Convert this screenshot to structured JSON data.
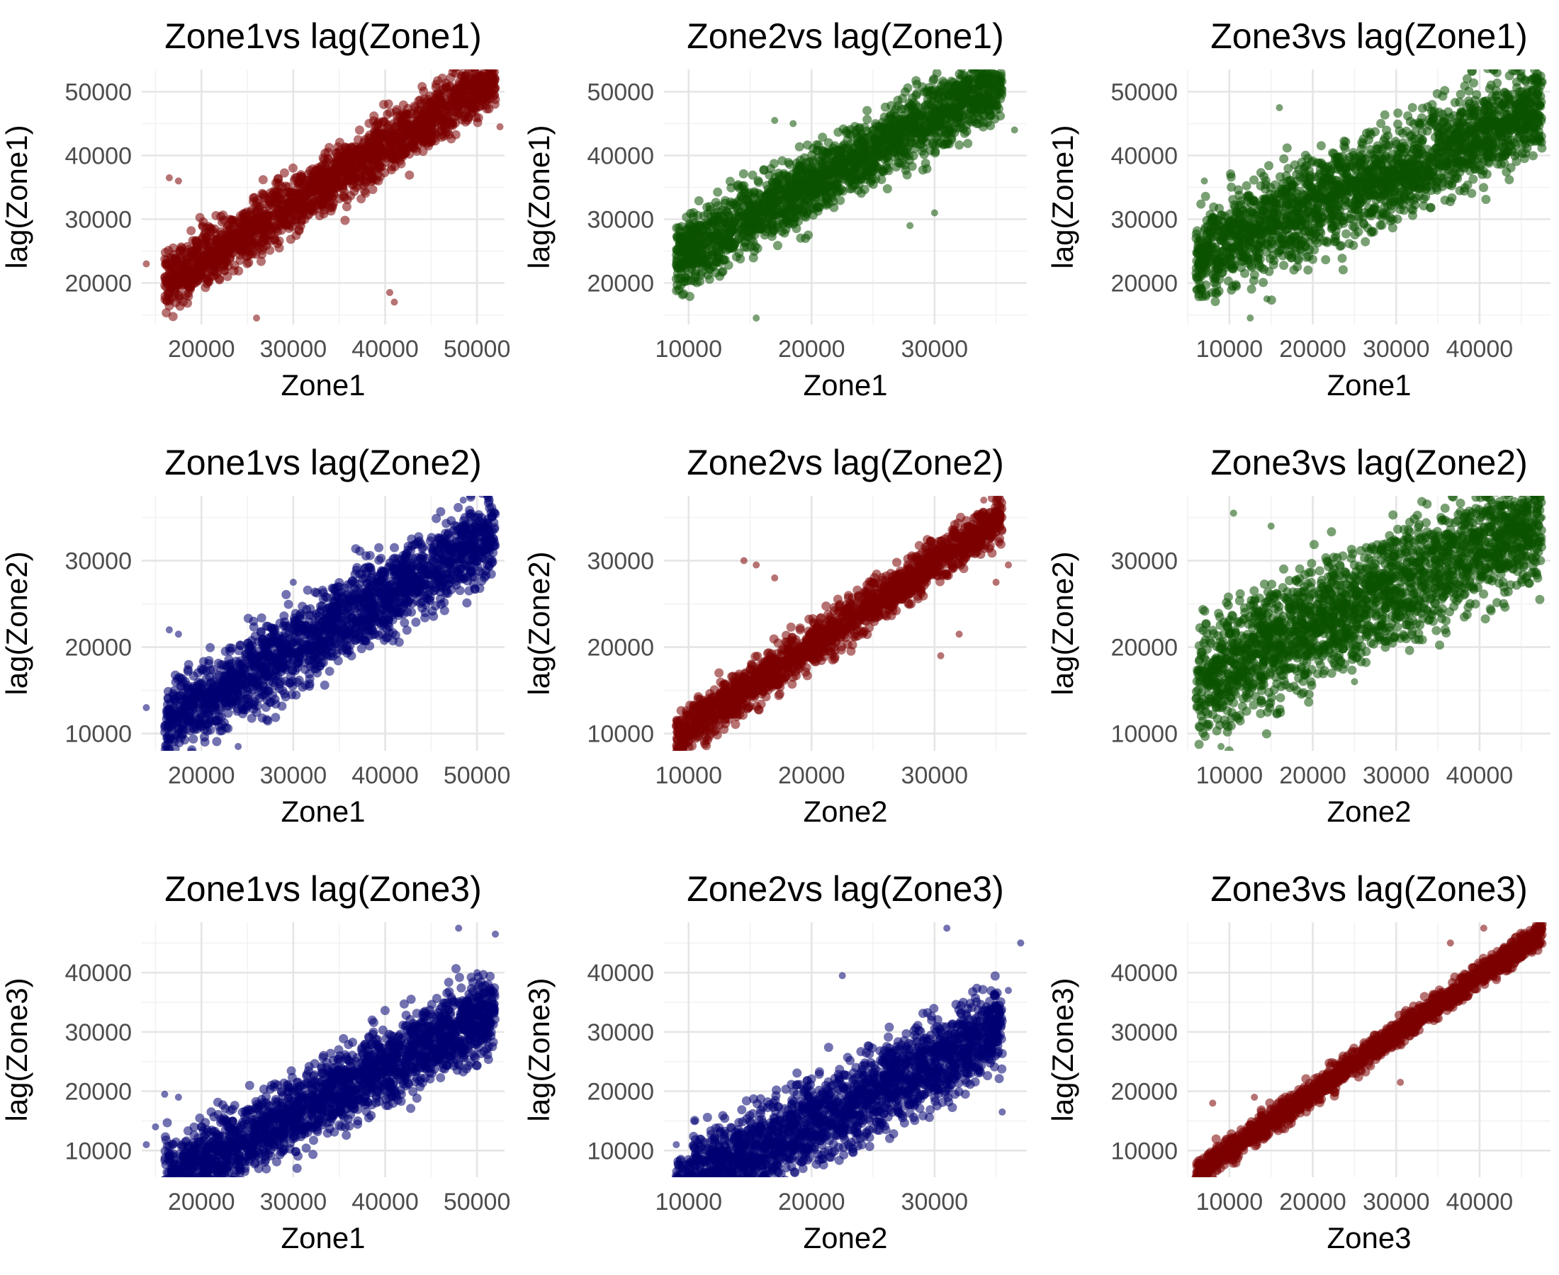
{
  "colors": {
    "red": "#7b0000",
    "green": "#0b5200",
    "blue": "#000073"
  },
  "chart_data": [
    {
      "type": "scatter",
      "title": "Zone1vs lag(Zone1)",
      "xlabel": "Zone1",
      "ylabel": "lag(Zone1)",
      "color": "#7b0000",
      "xlim": [
        13500,
        53000
      ],
      "ylim": [
        13500,
        53500
      ],
      "xticks": [
        20000,
        30000,
        40000,
        50000
      ],
      "yticks": [
        20000,
        30000,
        40000,
        50000
      ],
      "x_ticklabels": [
        "20000",
        "30000",
        "40000",
        "50000"
      ],
      "y_ticklabels": [
        "20000",
        "30000",
        "40000",
        "50000"
      ],
      "shape": {
        "slope": 0.9,
        "intercept": 5500,
        "spread": 3200,
        "xmin": 16000,
        "xmax": 52000,
        "n": 2000
      },
      "points": [
        [
          14000,
          23000
        ],
        [
          16500,
          36500
        ],
        [
          17500,
          36000
        ],
        [
          20000,
          29000
        ],
        [
          40500,
          18500
        ],
        [
          41000,
          17000
        ],
        [
          52500,
          44500
        ],
        [
          51500,
          52000
        ],
        [
          26000,
          14500
        ],
        [
          46000,
          48500
        ]
      ]
    },
    {
      "type": "scatter",
      "title": "Zone2vs lag(Zone1)",
      "xlabel": "Zone1",
      "ylabel": "lag(Zone1)",
      "color": "#0b5200",
      "xlim": [
        8000,
        37500
      ],
      "ylim": [
        13500,
        53500
      ],
      "xticks": [
        10000,
        20000,
        30000
      ],
      "yticks": [
        20000,
        30000,
        40000,
        50000
      ],
      "x_ticklabels": [
        "10000",
        "20000",
        "30000"
      ],
      "y_ticklabels": [
        "20000",
        "30000",
        "40000",
        "50000"
      ],
      "shape": {
        "slope": 1.05,
        "intercept": 14500,
        "spread": 3800,
        "xmin": 9000,
        "xmax": 35500,
        "n": 2000
      },
      "points": [
        [
          9000,
          24000
        ],
        [
          17000,
          45500
        ],
        [
          18500,
          45000
        ],
        [
          36500,
          44000
        ],
        [
          35500,
          50500
        ],
        [
          15500,
          14500
        ],
        [
          28000,
          29000
        ],
        [
          30000,
          31000
        ]
      ]
    },
    {
      "type": "scatter",
      "title": "Zone3vs lag(Zone1)",
      "xlabel": "Zone1",
      "ylabel": "lag(Zone1)",
      "color": "#0b5200",
      "xlim": [
        5000,
        48500
      ],
      "ylim": [
        13500,
        53500
      ],
      "xticks": [
        10000,
        20000,
        30000,
        40000
      ],
      "yticks": [
        20000,
        30000,
        40000,
        50000
      ],
      "x_ticklabels": [
        "10000",
        "20000",
        "30000",
        "40000"
      ],
      "y_ticklabels": [
        "20000",
        "30000",
        "40000",
        "50000"
      ],
      "shape": {
        "slope": 0.55,
        "intercept": 21000,
        "spread": 5200,
        "xmin": 6000,
        "xmax": 47500,
        "n": 2200
      },
      "points": [
        [
          6000,
          19000
        ],
        [
          7000,
          36000
        ],
        [
          12500,
          14500
        ],
        [
          14500,
          17500
        ],
        [
          20000,
          32000
        ],
        [
          47500,
          51500
        ],
        [
          46500,
          48000
        ],
        [
          16000,
          47500
        ]
      ]
    },
    {
      "type": "scatter",
      "title": "Zone1vs lag(Zone2)",
      "xlabel": "Zone1",
      "ylabel": "lag(Zone2)",
      "color": "#000073",
      "xlim": [
        13500,
        53000
      ],
      "ylim": [
        8000,
        37500
      ],
      "xticks": [
        20000,
        30000,
        40000,
        50000
      ],
      "yticks": [
        10000,
        20000,
        30000
      ],
      "x_ticklabels": [
        "20000",
        "30000",
        "40000",
        "50000"
      ],
      "y_ticklabels": [
        "10000",
        "20000",
        "30000"
      ],
      "shape": {
        "slope": 0.62,
        "intercept": 1000,
        "spread": 3200,
        "xmin": 16000,
        "xmax": 52000,
        "n": 2000
      },
      "points": [
        [
          14000,
          13000
        ],
        [
          16500,
          22000
        ],
        [
          17500,
          21500
        ],
        [
          48500,
          37000
        ],
        [
          52000,
          35500
        ],
        [
          24000,
          8500
        ],
        [
          30000,
          27500
        ]
      ]
    },
    {
      "type": "scatter",
      "title": "Zone2vs lag(Zone2)",
      "xlabel": "Zone2",
      "ylabel": "lag(Zone2)",
      "color": "#7b0000",
      "xlim": [
        8000,
        37500
      ],
      "ylim": [
        8000,
        37500
      ],
      "xticks": [
        10000,
        20000,
        30000
      ],
      "yticks": [
        10000,
        20000,
        30000
      ],
      "x_ticklabels": [
        "10000",
        "20000",
        "30000"
      ],
      "y_ticklabels": [
        "10000",
        "20000",
        "30000"
      ],
      "shape": {
        "slope": 0.95,
        "intercept": 1200,
        "spread": 1800,
        "xmin": 9000,
        "xmax": 35500,
        "n": 1800
      },
      "points": [
        [
          9000,
          11500
        ],
        [
          14500,
          30000
        ],
        [
          15500,
          29500
        ],
        [
          17000,
          28000
        ],
        [
          30500,
          19000
        ],
        [
          32000,
          21500
        ],
        [
          36000,
          29500
        ],
        [
          35000,
          27500
        ],
        [
          34000,
          37000
        ]
      ]
    },
    {
      "type": "scatter",
      "title": "Zone3vs lag(Zone2)",
      "xlabel": "Zone2",
      "ylabel": "lag(Zone2)",
      "color": "#0b5200",
      "xlim": [
        5000,
        48500
      ],
      "ylim": [
        8000,
        37500
      ],
      "xticks": [
        10000,
        20000,
        30000,
        40000
      ],
      "yticks": [
        10000,
        20000,
        30000
      ],
      "x_ticklabels": [
        "10000",
        "20000",
        "30000",
        "40000"
      ],
      "y_ticklabels": [
        "10000",
        "20000",
        "30000"
      ],
      "shape": {
        "slope": 0.45,
        "intercept": 13500,
        "spread": 4800,
        "xmin": 6000,
        "xmax": 47500,
        "n": 2200
      },
      "points": [
        [
          6000,
          13000
        ],
        [
          10500,
          35500
        ],
        [
          15000,
          34000
        ],
        [
          9000,
          8500
        ],
        [
          47500,
          35000
        ],
        [
          45000,
          36000
        ],
        [
          25000,
          16000
        ]
      ]
    },
    {
      "type": "scatter",
      "title": "Zone1vs lag(Zone3)",
      "xlabel": "Zone1",
      "ylabel": "lag(Zone3)",
      "color": "#000073",
      "xlim": [
        13500,
        53000
      ],
      "ylim": [
        5500,
        48500
      ],
      "xticks": [
        20000,
        30000,
        40000,
        50000
      ],
      "yticks": [
        10000,
        20000,
        30000,
        40000
      ],
      "x_ticklabels": [
        "20000",
        "30000",
        "40000",
        "50000"
      ],
      "y_ticklabels": [
        "10000",
        "20000",
        "30000",
        "40000"
      ],
      "shape": {
        "slope": 0.8,
        "intercept": -8000,
        "spread": 4500,
        "xmin": 16000,
        "xmax": 52000,
        "n": 2200
      },
      "points": [
        [
          14000,
          11000
        ],
        [
          15000,
          14000
        ],
        [
          16000,
          19500
        ],
        [
          17500,
          19000
        ],
        [
          48000,
          47500
        ],
        [
          52000,
          46500
        ],
        [
          50000,
          40000
        ],
        [
          19000,
          7000
        ]
      ]
    },
    {
      "type": "scatter",
      "title": "Zone2vs lag(Zone3)",
      "xlabel": "Zone2",
      "ylabel": "lag(Zone3)",
      "color": "#000073",
      "xlim": [
        8000,
        37500
      ],
      "ylim": [
        5500,
        48500
      ],
      "xticks": [
        10000,
        20000,
        30000
      ],
      "yticks": [
        10000,
        20000,
        30000,
        40000
      ],
      "x_ticklabels": [
        "10000",
        "20000",
        "30000"
      ],
      "y_ticklabels": [
        "10000",
        "20000",
        "30000",
        "40000"
      ],
      "shape": {
        "slope": 1.05,
        "intercept": -6500,
        "spread": 5000,
        "xmin": 9000,
        "xmax": 35500,
        "n": 2200
      },
      "points": [
        [
          9000,
          11000
        ],
        [
          10500,
          15000
        ],
        [
          22500,
          39500
        ],
        [
          31000,
          47500
        ],
        [
          36000,
          37000
        ],
        [
          35500,
          16500
        ],
        [
          37000,
          45000
        ]
      ]
    },
    {
      "type": "scatter",
      "title": "Zone3vs lag(Zone3)",
      "xlabel": "Zone3",
      "ylabel": "lag(Zone3)",
      "color": "#7b0000",
      "xlim": [
        5000,
        48500
      ],
      "ylim": [
        5500,
        48500
      ],
      "xticks": [
        10000,
        20000,
        30000,
        40000
      ],
      "yticks": [
        10000,
        20000,
        30000,
        40000
      ],
      "x_ticklabels": [
        "10000",
        "20000",
        "30000",
        "40000"
      ],
      "y_ticklabels": [
        "10000",
        "20000",
        "30000",
        "40000"
      ],
      "shape": {
        "slope": 0.98,
        "intercept": 300,
        "spread": 1500,
        "xmin": 6000,
        "xmax": 47500,
        "n": 1800
      },
      "points": [
        [
          6000,
          6500
        ],
        [
          7000,
          7000
        ],
        [
          8000,
          18000
        ],
        [
          13000,
          19000
        ],
        [
          30500,
          21500
        ],
        [
          36500,
          45000
        ],
        [
          40500,
          47500
        ],
        [
          47500,
          47500
        ],
        [
          44000,
          43500
        ]
      ]
    }
  ]
}
